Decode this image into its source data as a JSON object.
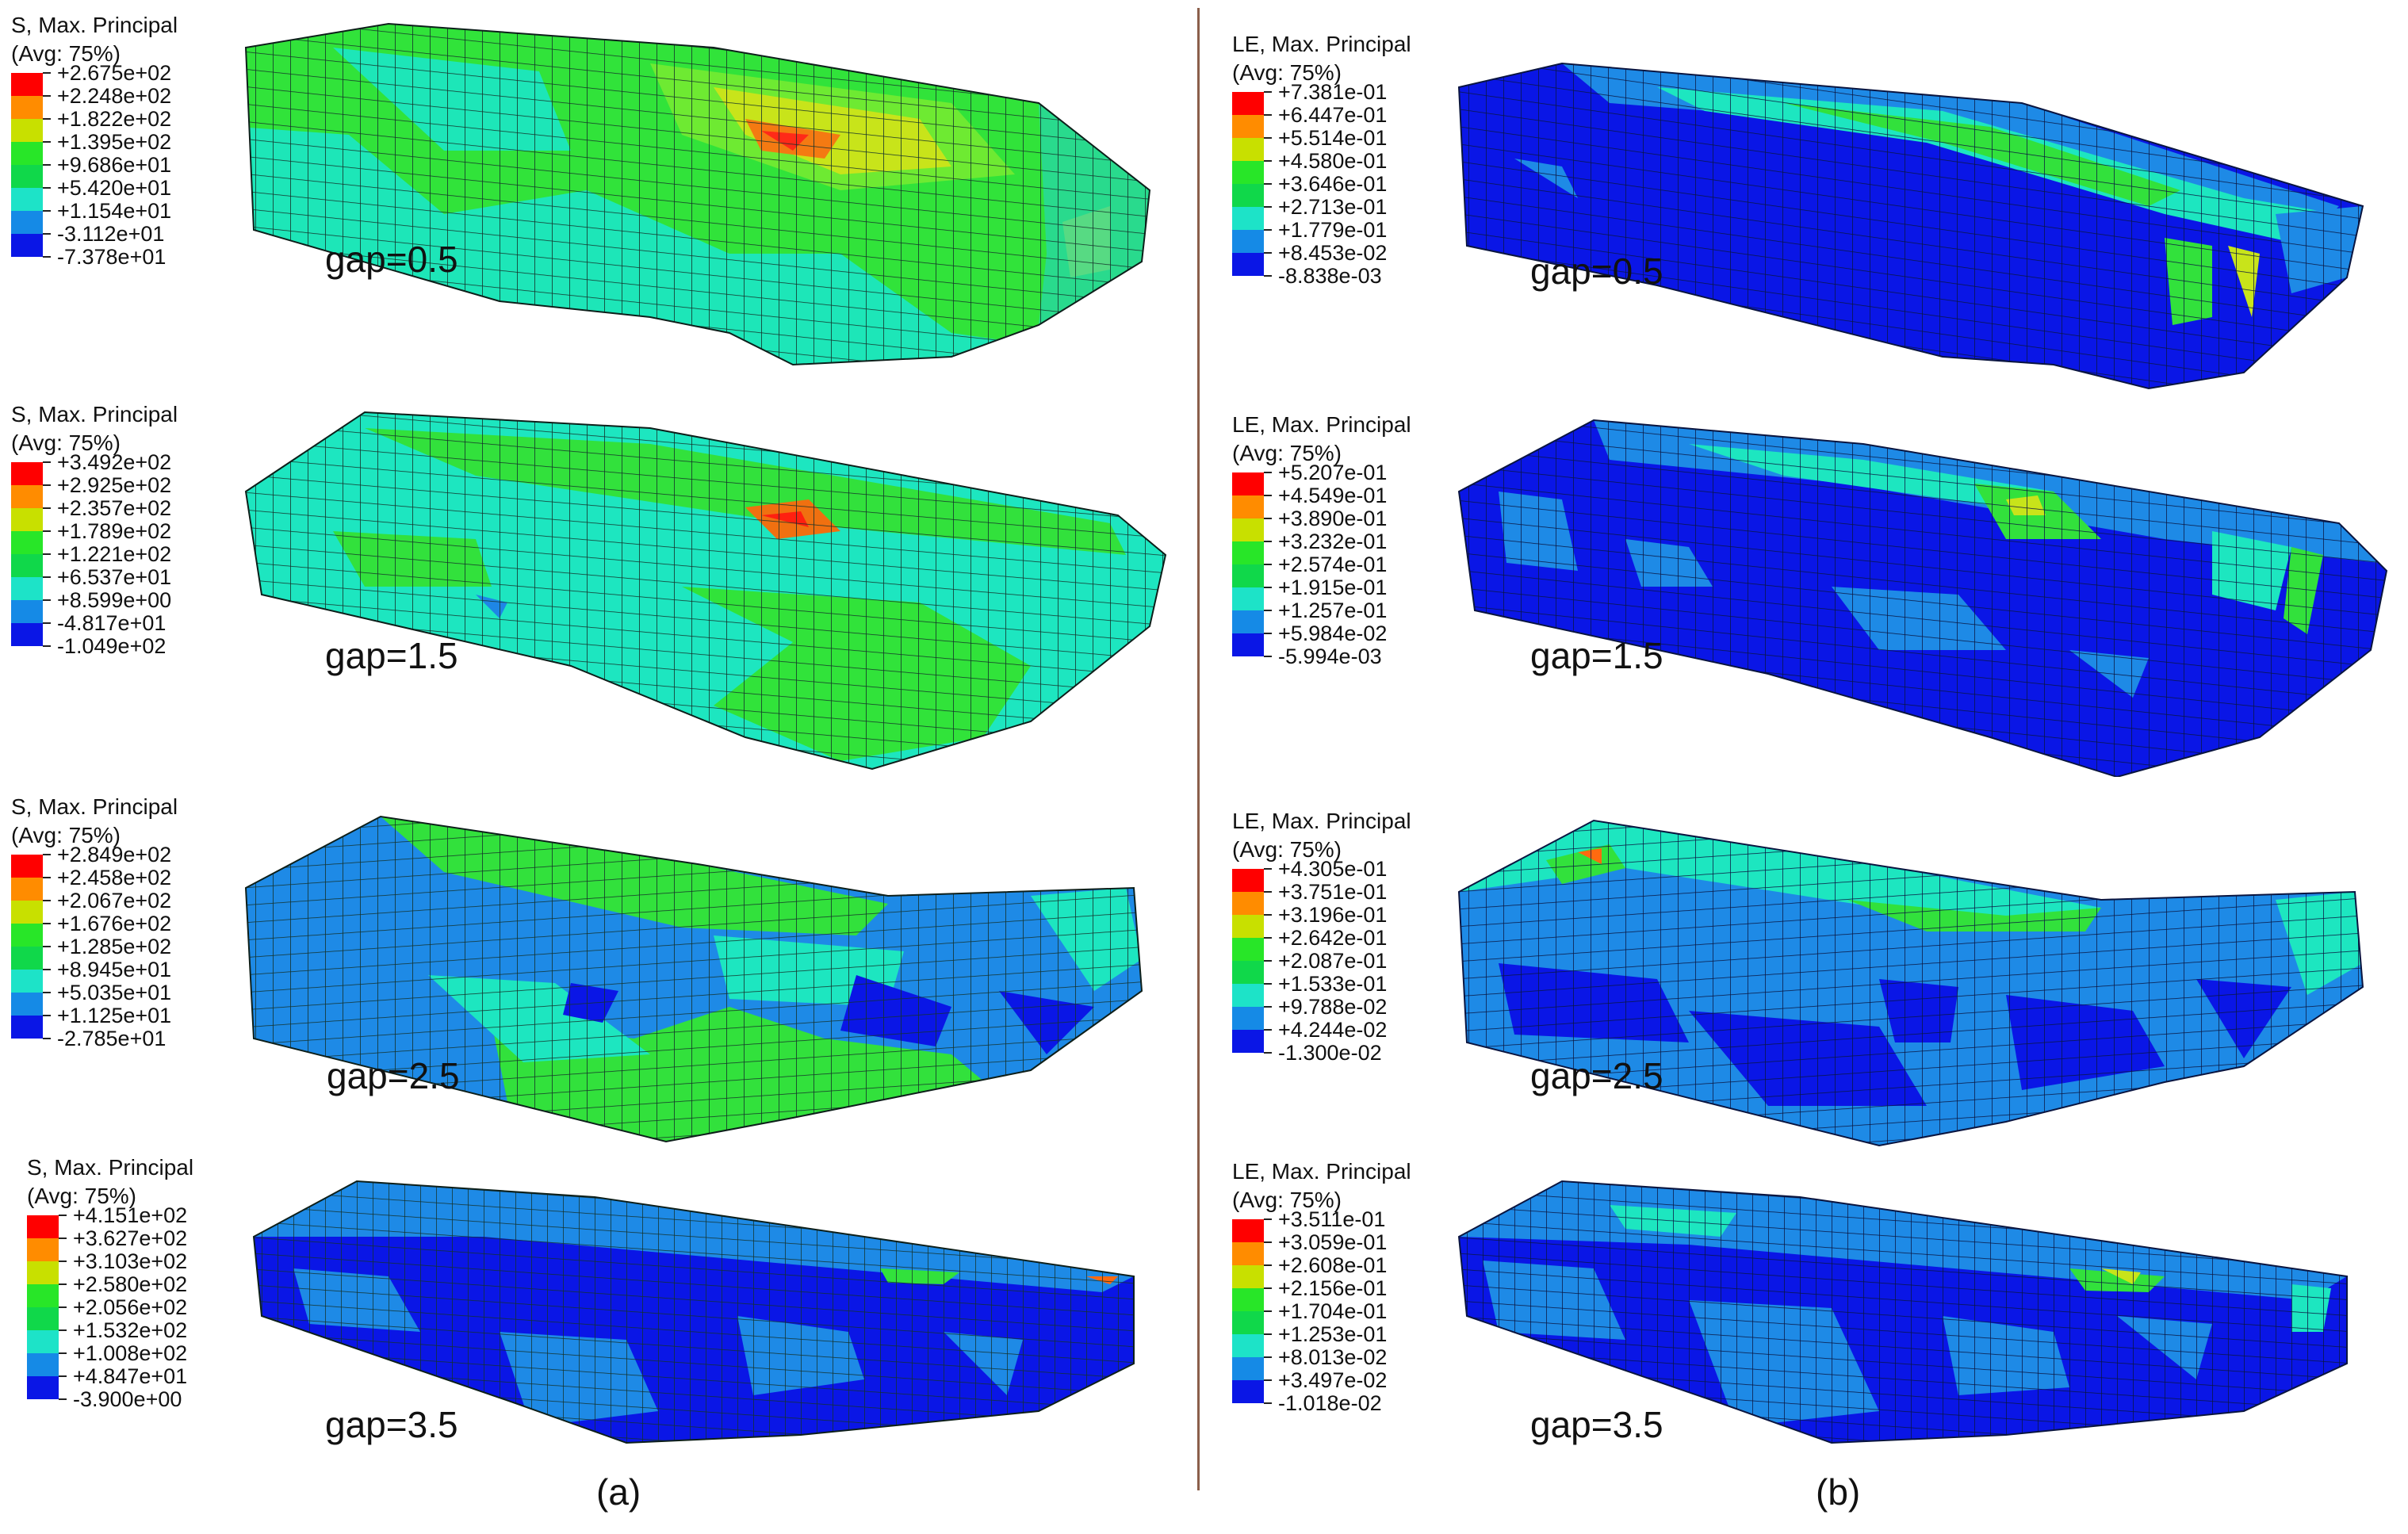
{
  "colors": {
    "scale": [
      "#ff0000",
      "#ff8c00",
      "#c8e000",
      "#28e628",
      "#10d84a",
      "#1de3c8",
      "#158ae6",
      "#0a16e6"
    ],
    "divider": "#8b5f4b"
  },
  "panels": [
    {
      "label": "(a)",
      "rows": [
        {
          "title": "S, Max. Principal",
          "avg": "(Avg: 75%)",
          "gap": "gap=0.5",
          "levels": [
            "+2.675e+02",
            "+2.248e+02",
            "+1.822e+02",
            "+1.395e+02",
            "+9.686e+01",
            "+5.420e+01",
            "+1.154e+01",
            "-3.112e+01",
            "-7.378e+01"
          ]
        },
        {
          "title": "S, Max. Principal",
          "avg": "(Avg: 75%)",
          "gap": "gap=1.5",
          "levels": [
            "+3.492e+02",
            "+2.925e+02",
            "+2.357e+02",
            "+1.789e+02",
            "+1.221e+02",
            "+6.537e+01",
            "+8.599e+00",
            "-4.817e+01",
            "-1.049e+02"
          ]
        },
        {
          "title": "S, Max. Principal",
          "avg": "(Avg: 75%)",
          "gap": "gap=2.5",
          "levels": [
            "+2.849e+02",
            "+2.458e+02",
            "+2.067e+02",
            "+1.676e+02",
            "+1.285e+02",
            "+8.945e+01",
            "+5.035e+01",
            "+1.125e+01",
            "-2.785e+01"
          ]
        },
        {
          "title": "S, Max. Principal",
          "avg": "(Avg: 75%)",
          "gap": "gap=3.5",
          "levels": [
            "+4.151e+02",
            "+3.627e+02",
            "+3.103e+02",
            "+2.580e+02",
            "+2.056e+02",
            "+1.532e+02",
            "+1.008e+02",
            "+4.847e+01",
            "-3.900e+00"
          ]
        }
      ]
    },
    {
      "label": "(b)",
      "rows": [
        {
          "title": "LE, Max. Principal",
          "avg": "(Avg: 75%)",
          "gap": "gap=0.5",
          "levels": [
            "+7.381e-01",
            "+6.447e-01",
            "+5.514e-01",
            "+4.580e-01",
            "+3.646e-01",
            "+2.713e-01",
            "+1.779e-01",
            "+8.453e-02",
            "-8.838e-03"
          ]
        },
        {
          "title": "LE, Max. Principal",
          "avg": "(Avg: 75%)",
          "gap": "gap=1.5",
          "levels": [
            "+5.207e-01",
            "+4.549e-01",
            "+3.890e-01",
            "+3.232e-01",
            "+2.574e-01",
            "+1.915e-01",
            "+1.257e-01",
            "+5.984e-02",
            "-5.994e-03"
          ]
        },
        {
          "title": "LE, Max. Principal",
          "avg": "(Avg: 75%)",
          "gap": "gap=2.5",
          "levels": [
            "+4.305e-01",
            "+3.751e-01",
            "+3.196e-01",
            "+2.642e-01",
            "+2.087e-01",
            "+1.533e-01",
            "+9.788e-02",
            "+4.244e-02",
            "-1.300e-02"
          ]
        },
        {
          "title": "LE, Max. Principal",
          "avg": "(Avg: 75%)",
          "gap": "gap=3.5",
          "levels": [
            "+3.511e-01",
            "+3.059e-01",
            "+2.608e-01",
            "+2.156e-01",
            "+1.704e-01",
            "+1.253e-01",
            "+8.013e-02",
            "+3.497e-02",
            "-1.018e-02"
          ]
        }
      ]
    }
  ]
}
